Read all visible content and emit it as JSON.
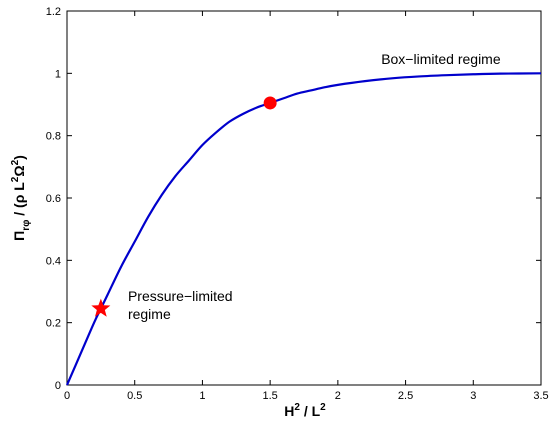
{
  "chart_data": {
    "type": "line",
    "title": "",
    "xlabel": {
      "base": "H",
      "sup1": "2",
      "sep": " / ",
      "base2": "L",
      "sup2": "2"
    },
    "ylabel": {
      "pi": "Π",
      "sub": "rφ",
      "mid": " / (ρ L",
      "sup1": "2",
      "omega": "Ω",
      "sup2": "2",
      "end": ")"
    },
    "xlim": [
      0,
      3.5
    ],
    "ylim": [
      0,
      1.2
    ],
    "xticks": [
      "0",
      "0.5",
      "1",
      "1.5",
      "2",
      "2.5",
      "3",
      "3.5"
    ],
    "yticks": [
      "0",
      "0.2",
      "0.4",
      "0.6",
      "0.8",
      "1",
      "1.2"
    ],
    "grid": false,
    "series": [
      {
        "color": "#0000cc",
        "x": [
          0,
          0.1,
          0.2,
          0.25,
          0.3,
          0.4,
          0.5,
          0.6,
          0.7,
          0.8,
          0.9,
          1.0,
          1.1,
          1.2,
          1.3,
          1.4,
          1.5,
          1.6,
          1.7,
          1.8,
          1.9,
          2.0,
          2.2,
          2.4,
          2.6,
          2.8,
          3.0,
          3.2,
          3.5
        ],
        "y": [
          0,
          0.1,
          0.2,
          0.245,
          0.29,
          0.38,
          0.46,
          0.54,
          0.61,
          0.67,
          0.72,
          0.77,
          0.81,
          0.845,
          0.87,
          0.89,
          0.905,
          0.92,
          0.935,
          0.945,
          0.955,
          0.963,
          0.975,
          0.984,
          0.99,
          0.994,
          0.997,
          0.999,
          1.0
        ]
      }
    ],
    "markers": [
      {
        "shape": "star",
        "x": 0.25,
        "y": 0.245,
        "color": "#ff0000"
      },
      {
        "shape": "circle",
        "x": 1.5,
        "y": 0.905,
        "color": "#ff0000"
      }
    ],
    "annotations": [
      {
        "lines": [
          "Box−limited regime"
        ],
        "x": 2.32,
        "y": 1.03
      },
      {
        "lines": [
          "Pressure−limited",
          "regime"
        ],
        "x": 0.45,
        "y": 0.27
      }
    ]
  }
}
